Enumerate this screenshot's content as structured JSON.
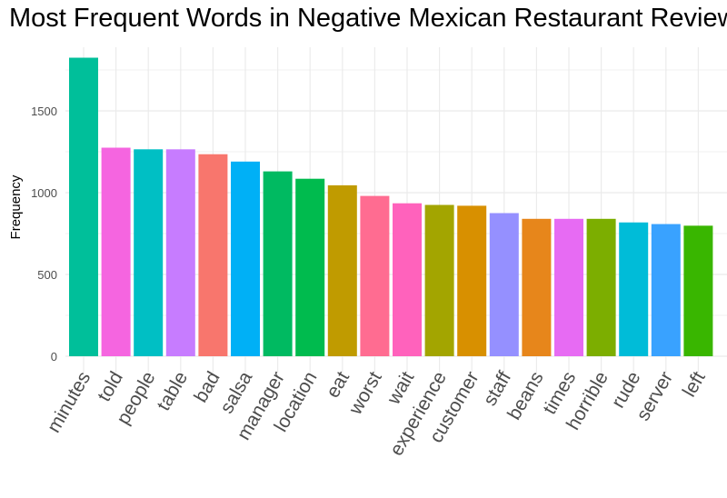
{
  "chart_data": {
    "type": "bar",
    "title": "Most Frequent Words in Negative Mexican Restaurant Reviews",
    "xlabel": "",
    "ylabel": "Frequency",
    "ylim": [
      0,
      1880
    ],
    "yticks": [
      0,
      500,
      1000,
      1500
    ],
    "grid": true,
    "legend": "none",
    "categories": [
      "minutes",
      "told",
      "people",
      "table",
      "bad",
      "salsa",
      "manager",
      "location",
      "eat",
      "worst",
      "wait",
      "experience",
      "customer",
      "staff",
      "beans",
      "times",
      "horrible",
      "rude",
      "server",
      "left"
    ],
    "values": [
      1825,
      1275,
      1265,
      1265,
      1235,
      1190,
      1130,
      1085,
      1045,
      980,
      935,
      925,
      920,
      875,
      840,
      840,
      840,
      818,
      808,
      798
    ],
    "colors": [
      "#00BF9A",
      "#F565E0",
      "#00BFC4",
      "#C77CFF",
      "#F8766D",
      "#00B0F6",
      "#00BA61",
      "#00BB4E",
      "#C09B00",
      "#FF6C91",
      "#FF62BC",
      "#A3A500",
      "#D89000",
      "#9590FF",
      "#E7861B",
      "#E76BF3",
      "#7CAE00",
      "#00BCD8",
      "#39A2FF",
      "#39B600"
    ]
  }
}
